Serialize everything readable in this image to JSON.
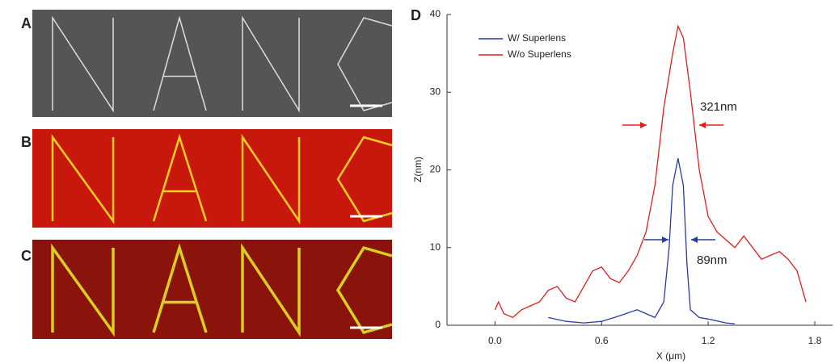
{
  "panels": {
    "a": "A",
    "b": "B",
    "c": "C"
  },
  "chart_data": {
    "type": "line",
    "title": "D",
    "x_label": "X (μm)",
    "y_label": "Z(nm)",
    "xlim": [
      -0.27,
      1.9
    ],
    "ylim": [
      0,
      40
    ],
    "xticks": [
      {
        "value": 0,
        "label": "0.0"
      },
      0.6,
      1.2,
      1.8
    ],
    "yticks": [
      0,
      10,
      20,
      30,
      40
    ],
    "legend": "upper left",
    "annotations": [
      "321nm",
      "89nm"
    ],
    "series": [
      {
        "name": "W/ Superlens",
        "color": "#2b3aa0",
        "x": [
          0.3,
          0.4,
          0.5,
          0.6,
          0.7,
          0.8,
          0.85,
          0.9,
          0.95,
          0.98,
          1.0,
          1.03,
          1.06,
          1.08,
          1.1,
          1.15,
          1.2,
          1.3,
          1.35
        ],
        "values": [
          1,
          0.5,
          0.3,
          0.5,
          1.2,
          2,
          1.5,
          1,
          3,
          10,
          18,
          21.5,
          18,
          8,
          2,
          1,
          0.8,
          0.3,
          0.2
        ]
      },
      {
        "name": "W/o Superlens",
        "color": "#e02020",
        "x": [
          0.0,
          0.02,
          0.05,
          0.1,
          0.15,
          0.2,
          0.25,
          0.3,
          0.35,
          0.4,
          0.45,
          0.5,
          0.55,
          0.6,
          0.65,
          0.7,
          0.75,
          0.8,
          0.85,
          0.9,
          0.95,
          1.0,
          1.03,
          1.06,
          1.1,
          1.15,
          1.2,
          1.25,
          1.3,
          1.35,
          1.4,
          1.45,
          1.5,
          1.55,
          1.6,
          1.65,
          1.7,
          1.75
        ],
        "values": [
          2,
          3,
          1.5,
          1,
          2,
          2.5,
          3,
          4.5,
          5,
          3.5,
          3,
          5,
          7,
          7.5,
          6,
          5.5,
          7,
          9,
          12,
          18,
          28,
          35,
          38.5,
          37,
          30,
          20,
          14,
          12,
          11,
          10,
          11.5,
          10,
          8.5,
          9,
          9.5,
          8.5,
          7,
          3
        ]
      }
    ]
  }
}
